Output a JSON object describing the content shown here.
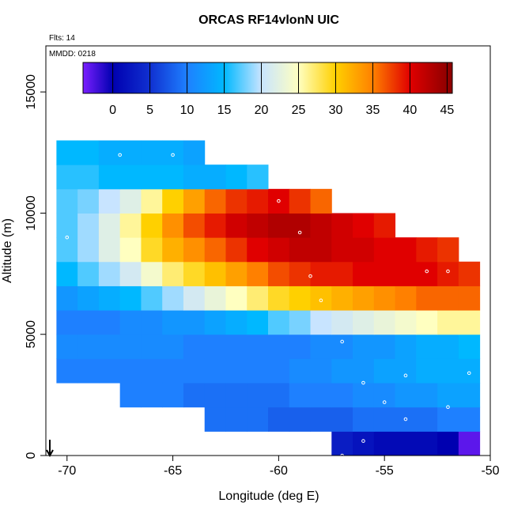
{
  "chart_data": {
    "type": "heatmap",
    "title": "ORCAS RF14vlonN UIC",
    "subtitle": "Flts: 14",
    "annotation": "MMDD: 0218",
    "x_label": "Longitude (deg E)",
    "y_label": "Altitude (m)",
    "xlim": [
      -71,
      -50
    ],
    "ylim": [
      0,
      16900
    ],
    "xticks": [
      -70,
      -65,
      -60,
      -55,
      -50
    ],
    "yticks": [
      0,
      5000,
      10000,
      15000
    ],
    "x": [
      -70,
      -69,
      -68,
      -67,
      -66,
      -65,
      -64,
      -63,
      -62,
      -61,
      -60,
      -59,
      -58,
      -57,
      -56,
      -55,
      -54,
      -53,
      -52,
      -51
    ],
    "y": [
      500,
      1500,
      2500,
      3500,
      4500,
      5500,
      6500,
      7500,
      8500,
      9500,
      10500,
      11500,
      12500
    ],
    "values": [
      [
        null,
        null,
        null,
        null,
        null,
        null,
        null,
        null,
        null,
        null,
        null,
        null,
        null,
        3,
        2,
        1,
        1,
        1,
        0,
        -3
      ],
      [
        null,
        null,
        null,
        null,
        null,
        null,
        null,
        9,
        9,
        9,
        8,
        8,
        8,
        8,
        9,
        9,
        9,
        9,
        10,
        10
      ],
      [
        null,
        null,
        null,
        10,
        10,
        10,
        9,
        9,
        9,
        9,
        9,
        10,
        10,
        10,
        11,
        11,
        12,
        12,
        13,
        13
      ],
      [
        10,
        10,
        10,
        10,
        10,
        10,
        10,
        10,
        10,
        10,
        10,
        11,
        11,
        12,
        12,
        13,
        13,
        14,
        14,
        14
      ],
      [
        11,
        11,
        11,
        11,
        11,
        11,
        10,
        10,
        10,
        10,
        10,
        10,
        11,
        11,
        12,
        12,
        13,
        14,
        14,
        15
      ],
      [
        10,
        10,
        10,
        11,
        11,
        12,
        12,
        13,
        14,
        15,
        17,
        18,
        20,
        21,
        22,
        23,
        24,
        25,
        26,
        26
      ],
      [
        12,
        13,
        14,
        15,
        17,
        19,
        21,
        23,
        25,
        27,
        29,
        30,
        31,
        32,
        33,
        34,
        35,
        36,
        36,
        36
      ],
      [
        15,
        17,
        19,
        21,
        24,
        27,
        29,
        31,
        33,
        35,
        37,
        38,
        39,
        39,
        40,
        40,
        40,
        40,
        39,
        38
      ],
      [
        17,
        19,
        22,
        25,
        29,
        32,
        34,
        36,
        38,
        40,
        41,
        42,
        42,
        41,
        41,
        40,
        40,
        39,
        38,
        null
      ],
      [
        17,
        19,
        22,
        26,
        30,
        34,
        37,
        39,
        41,
        42,
        43,
        43,
        42,
        41,
        40,
        39,
        null,
        null,
        null,
        null
      ],
      [
        17,
        18,
        20,
        22,
        26,
        30,
        33,
        36,
        38,
        39,
        40,
        38,
        36,
        null,
        null,
        null,
        null,
        null,
        null,
        null
      ],
      [
        16,
        16,
        15,
        15,
        15,
        15,
        14,
        14,
        15,
        16,
        null,
        null,
        null,
        null,
        null,
        null,
        null,
        null,
        null,
        null
      ],
      [
        15,
        15,
        14,
        14,
        14,
        14,
        13,
        null,
        null,
        null,
        null,
        null,
        null,
        null,
        null,
        null,
        null,
        null,
        null,
        null
      ]
    ],
    "colorbar_lim": [
      -4,
      45.7
    ],
    "colorbar_ticks": [
      0,
      5,
      10,
      15,
      20,
      25,
      30,
      35,
      40,
      45
    ],
    "colorscale": [
      [
        -4,
        "#7a1fff"
      ],
      [
        0,
        "#0000b0"
      ],
      [
        5,
        "#1030d0"
      ],
      [
        10,
        "#1e80ff"
      ],
      [
        15,
        "#00b8ff"
      ],
      [
        20,
        "#c8e4ff"
      ],
      [
        25,
        "#ffffc0"
      ],
      [
        30,
        "#ffd000"
      ],
      [
        35,
        "#ff8000"
      ],
      [
        40,
        "#e00000"
      ],
      [
        45,
        "#900000"
      ]
    ],
    "track": {
      "color": "#ffffff",
      "x": [
        -70,
        -67.5,
        -65,
        -62,
        -60,
        -59,
        -58.5,
        -58,
        -57,
        -56,
        -55,
        -54,
        -53,
        -52,
        -51,
        -52,
        -54,
        -56,
        -57
      ],
      "y": [
        9000,
        12400,
        12400,
        12400,
        10500,
        9200,
        7400,
        6400,
        4700,
        3000,
        2200,
        3300,
        7600,
        7600,
        3400,
        2000,
        1500,
        600,
        0
      ]
    }
  }
}
